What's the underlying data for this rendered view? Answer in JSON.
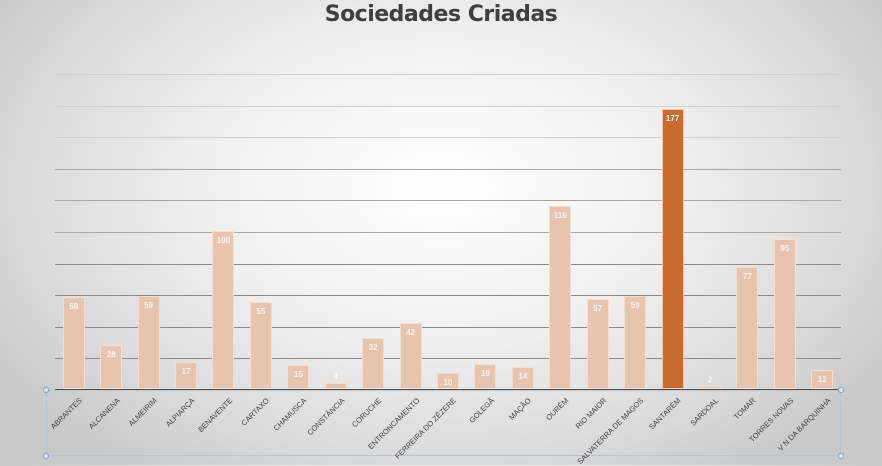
{
  "title": "Sociedades Criadas",
  "colors": {
    "bar_default": "#e6c4ae",
    "bar_highlight": "#c96a2e",
    "gridline": "#a6a6a6",
    "axis": "#555555",
    "title": "#3f3f3f"
  },
  "chart_data": {
    "type": "bar",
    "title": "Sociedades Criadas",
    "xlabel": "",
    "ylabel": "",
    "ylim": [
      0,
      200
    ],
    "y_gridline_step": 20,
    "grid": true,
    "legend": "none",
    "categories": [
      "ABRANTES",
      "ALCANENA",
      "ALMEIRIM",
      "ALPIARÇA",
      "BENAVENTE",
      "CARTAXO",
      "CHAMUSCA",
      "CONSTÂNCIA",
      "CORUCHE",
      "ENTRONCAMENTO",
      "FERREIRA DO ZÊZERE",
      "GOLEGÃ",
      "MAÇÃO",
      "OURÉM",
      "RIO MAIOR",
      "SALVATERRA DE MAGOS",
      "SANTARÉM",
      "SARDOAL",
      "TOMAR",
      "TORRES NOVAS",
      "V N DA BARQUINHA"
    ],
    "values": [
      58,
      28,
      59,
      17,
      100,
      55,
      15,
      4,
      32,
      42,
      10,
      16,
      14,
      116,
      57,
      59,
      177,
      2,
      77,
      95,
      12
    ],
    "highlighted_category": "SANTARÉM",
    "data_labels": true
  }
}
